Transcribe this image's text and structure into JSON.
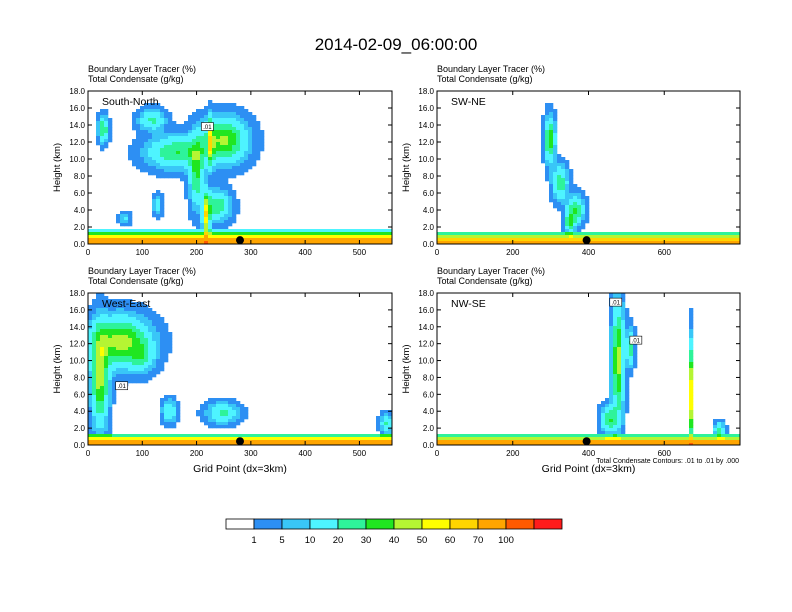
{
  "title": "2014-02-09_06:00:00",
  "colorbar": {
    "labels": [
      "1",
      "5",
      "10",
      "20",
      "30",
      "40",
      "50",
      "60",
      "70",
      "100"
    ],
    "colors": [
      "#ffffff",
      "#2d8ff3",
      "#39c6f7",
      "#4ef4ff",
      "#2ef39a",
      "#20e620",
      "#b5f533",
      "#ffff00",
      "#ffd500",
      "#ffa500",
      "#ff5a00",
      "#ff1b1b"
    ]
  },
  "colors": {
    "contour": "#000000",
    "marker": "#000000"
  },
  "footnote": "Total Condensate Contours: .01 to .01 by .000",
  "chart_data": [
    {
      "type": "heatmap",
      "panel_label": "South-North",
      "title_line1": "Boundary Layer Tracer   (%)",
      "title_line2": "Total Condensate   (g/kg)",
      "ylabel": "Height (km)",
      "xlabel": "",
      "xlim": [
        0,
        560
      ],
      "ylim": [
        0,
        18
      ],
      "xticks": [
        0,
        100,
        200,
        300,
        400,
        500
      ],
      "yticks": [
        "0.0",
        "2.0",
        "4.0",
        "6.0",
        "8.0",
        "10.0",
        "12.0",
        "14.0",
        "16.0",
        "18.0"
      ],
      "marker_x": 280,
      "contour_labels": [
        {
          "text": ".01",
          "x": 220,
          "y": 13.7
        }
      ],
      "bl_top": 1.6,
      "blobs": [
        {
          "x": 250,
          "y": 12.2,
          "sx": 38,
          "sy": 2.3,
          "a": 42
        },
        {
          "x": 162,
          "y": 10.8,
          "sx": 48,
          "sy": 1.7,
          "a": 30
        },
        {
          "x": 200,
          "y": 8.5,
          "sx": 12,
          "sy": 3.5,
          "a": 32
        },
        {
          "x": 238,
          "y": 4.5,
          "sx": 22,
          "sy": 1.6,
          "a": 28
        },
        {
          "x": 218,
          "y": 3.2,
          "sx": 6,
          "sy": 2.5,
          "a": 55
        },
        {
          "x": 226,
          "y": 12.0,
          "sx": 5,
          "sy": 2.5,
          "a": 40
        },
        {
          "x": 28,
          "y": 13.5,
          "sx": 8,
          "sy": 1.3,
          "a": 32
        },
        {
          "x": 118,
          "y": 14.6,
          "sx": 22,
          "sy": 1.1,
          "a": 22
        },
        {
          "x": 68,
          "y": 3.0,
          "sx": 10,
          "sy": 0.6,
          "a": 12
        },
        {
          "x": 128,
          "y": 4.6,
          "sx": 7,
          "sy": 1.0,
          "a": 20
        }
      ]
    },
    {
      "type": "heatmap",
      "panel_label": "SW-NE",
      "title_line1": "Boundary Layer Tracer   (%)",
      "title_line2": "Total Condensate   (g/kg)",
      "ylabel": "Height (km)",
      "xlabel": "",
      "xlim": [
        0,
        800
      ],
      "ylim": [
        0,
        18
      ],
      "xticks": [
        0,
        200,
        400,
        600
      ],
      "yticks": [
        "0.0",
        "2.0",
        "4.0",
        "6.0",
        "8.0",
        "10.0",
        "12.0",
        "14.0",
        "16.0",
        "18.0"
      ],
      "marker_x": 395,
      "contour_labels": [],
      "bl_top": 1.5,
      "blobs": [
        {
          "x": 298,
          "y": 12.3,
          "sx": 12,
          "sy": 2.3,
          "a": 40
        },
        {
          "x": 325,
          "y": 7.2,
          "sx": 18,
          "sy": 1.8,
          "a": 28
        },
        {
          "x": 365,
          "y": 4.0,
          "sx": 20,
          "sy": 1.5,
          "a": 32
        },
        {
          "x": 350,
          "y": 2.5,
          "sx": 12,
          "sy": 1.0,
          "a": 28
        }
      ]
    },
    {
      "type": "heatmap",
      "panel_label": "West-East",
      "title_line1": "Boundary Layer Tracer   (%)",
      "title_line2": "Total Condensate   (g/kg)",
      "ylabel": "Height (km)",
      "xlabel": "Grid Point (dx=3km)",
      "xlim": [
        0,
        560
      ],
      "ylim": [
        0,
        18
      ],
      "xticks": [
        0,
        100,
        200,
        300,
        400,
        500
      ],
      "yticks": [
        "0.0",
        "2.0",
        "4.0",
        "6.0",
        "8.0",
        "10.0",
        "12.0",
        "14.0",
        "16.0",
        "18.0"
      ],
      "marker_x": 280,
      "contour_labels": [
        {
          "text": ".01",
          "x": 62,
          "y": 6.9
        }
      ],
      "bl_top": 1.4,
      "blobs": [
        {
          "x": 60,
          "y": 12.2,
          "sx": 48,
          "sy": 2.6,
          "a": 45
        },
        {
          "x": 22,
          "y": 8.0,
          "sx": 14,
          "sy": 5.0,
          "a": 45
        },
        {
          "x": 100,
          "y": 10.5,
          "sx": 20,
          "sy": 1.6,
          "a": 18
        },
        {
          "x": 150,
          "y": 4.0,
          "sx": 12,
          "sy": 1.2,
          "a": 20
        },
        {
          "x": 248,
          "y": 3.8,
          "sx": 26,
          "sy": 1.1,
          "a": 22
        },
        {
          "x": 550,
          "y": 2.5,
          "sx": 10,
          "sy": 1.0,
          "a": 22
        }
      ]
    },
    {
      "type": "heatmap",
      "panel_label": "NW-SE",
      "title_line1": "Boundary Layer Tracer   (%)",
      "title_line2": "Total Condensate   (g/kg)",
      "ylabel": "Height (km)",
      "xlabel": "Grid Point (dx=3km)",
      "xlim": [
        0,
        800
      ],
      "ylim": [
        0,
        18
      ],
      "xticks": [
        0,
        200,
        400,
        600
      ],
      "yticks": [
        "0.0",
        "2.0",
        "4.0",
        "6.0",
        "8.0",
        "10.0",
        "12.0",
        "14.0",
        "16.0",
        "18.0"
      ],
      "marker_x": 395,
      "contour_labels": [
        {
          "text": ".01",
          "x": 472,
          "y": 16.8
        },
        {
          "text": ".01",
          "x": 525,
          "y": 12.3
        }
      ],
      "bl_top": 1.3,
      "blobs": [
        {
          "x": 478,
          "y": 10.0,
          "sx": 14,
          "sy": 6.0,
          "a": 45
        },
        {
          "x": 455,
          "y": 3.0,
          "sx": 20,
          "sy": 1.4,
          "a": 30
        },
        {
          "x": 510,
          "y": 11.5,
          "sx": 10,
          "sy": 2.0,
          "a": 25
        },
        {
          "x": 672,
          "y": 6.0,
          "sx": 3,
          "sy": 5.0,
          "a": 70
        },
        {
          "x": 745,
          "y": 1.8,
          "sx": 12,
          "sy": 0.8,
          "a": 25
        }
      ]
    }
  ]
}
